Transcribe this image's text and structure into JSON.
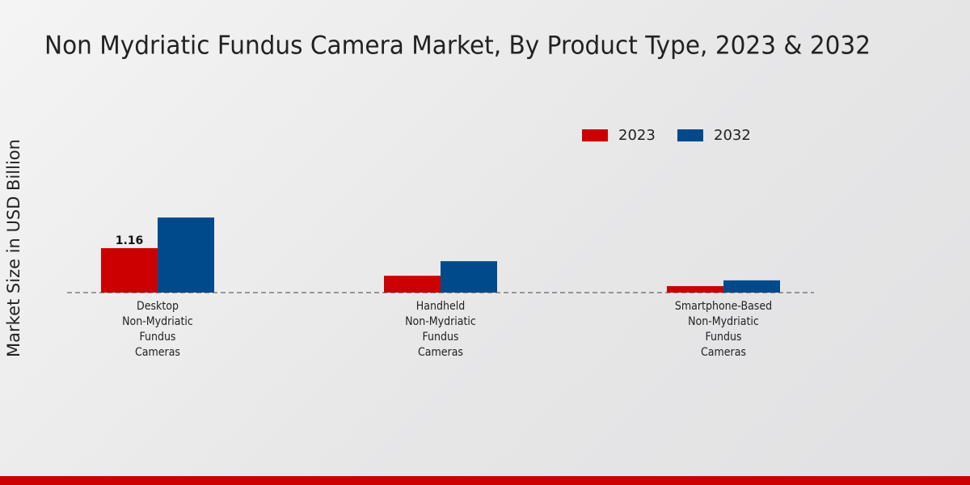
{
  "chart_data": {
    "type": "bar",
    "title": "Non Mydriatic Fundus Camera Market, By Product Type, 2023 & 2032",
    "y_label": "Market Size in USD Billion",
    "categories": [
      "Desktop Non-Mydriatic Fundus Cameras",
      "Handheld Non-Mydriatic Fundus Cameras",
      "Smartphone-Based Non-Mydriatic Fundus Cameras"
    ],
    "series": [
      {
        "name": "2023",
        "color": "#cc0000",
        "values": [
          1.16,
          0.44,
          0.17
        ],
        "value_labels": [
          "1.16",
          null,
          null
        ]
      },
      {
        "name": "2032",
        "color": "#004a8c",
        "values": [
          1.96,
          0.82,
          0.32
        ]
      }
    ],
    "ylim": [
      0,
      5
    ]
  }
}
